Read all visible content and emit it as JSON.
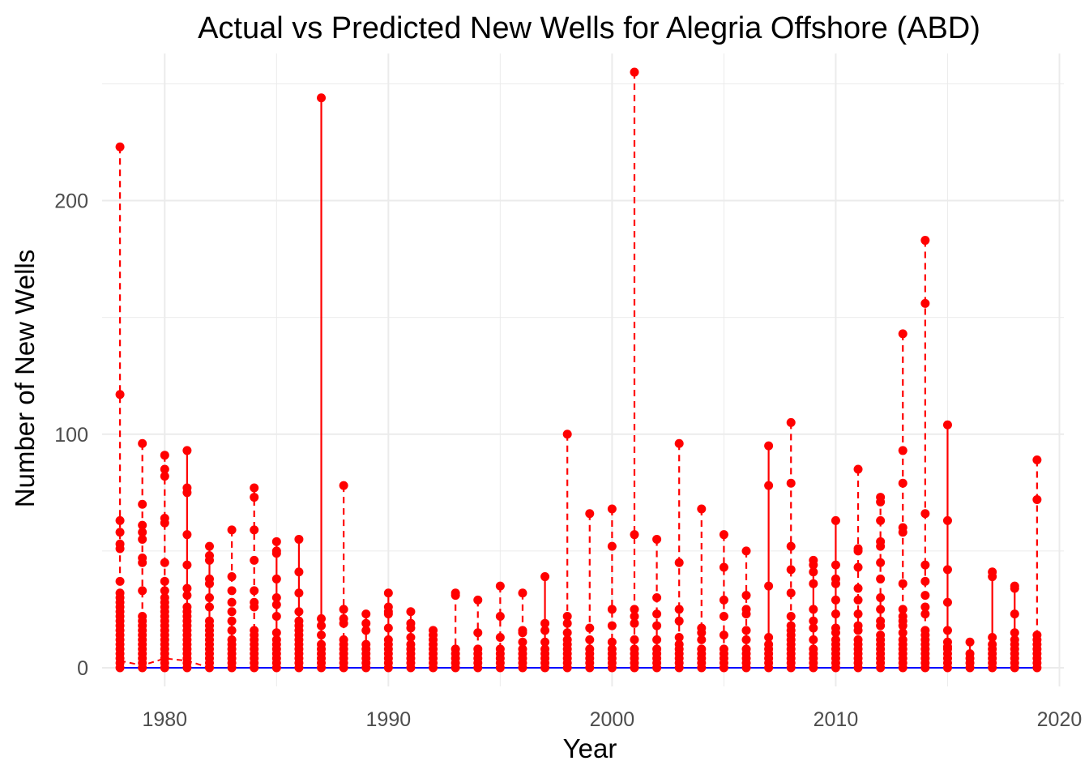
{
  "chart_data": {
    "type": "line",
    "title": "Actual vs Predicted New Wells for Alegria Offshore (ABD)",
    "xlabel": "Year",
    "ylabel": "Number of New Wells",
    "xlim": [
      1977.2,
      2020.2
    ],
    "ylim": [
      -8,
      263
    ],
    "x_ticks": [
      1980,
      1990,
      2000,
      2010,
      2020
    ],
    "y_ticks": [
      0,
      100,
      200
    ],
    "grid": true,
    "legend": "none",
    "colors": {
      "actual": "#ff0000",
      "predicted": "#0000ff",
      "grid": "#ebebeb"
    },
    "series": [
      {
        "role": "actual",
        "values_by_year": [
          {
            "year": 1978,
            "values": [
              223,
              117,
              63,
              58,
              53,
              51,
              37,
              32,
              30,
              28,
              26,
              24,
              22,
              20,
              18,
              16,
              14,
              12,
              10,
              8,
              6,
              4,
              2,
              0
            ],
            "style": "dashed"
          },
          {
            "year": 1979,
            "values": [
              96,
              70,
              61,
              58,
              55,
              47,
              45,
              33,
              22,
              20,
              18,
              16,
              14,
              12,
              10,
              8,
              6,
              4,
              2,
              0
            ],
            "style": "dashed"
          },
          {
            "year": 1980,
            "values": [
              91,
              85,
              82,
              64,
              62,
              45,
              37,
              33,
              30,
              28,
              26,
              24,
              22,
              20,
              18,
              16,
              14,
              12,
              10,
              8,
              6,
              4,
              2,
              0
            ],
            "style": "dashed"
          },
          {
            "year": 1981,
            "values": [
              93,
              77,
              75,
              57,
              44,
              34,
              31,
              26,
              24,
              22,
              20,
              18,
              16,
              14,
              12,
              10,
              8,
              6,
              4,
              2,
              0
            ],
            "style": "solid"
          },
          {
            "year": 1982,
            "values": [
              52,
              48,
              46,
              38,
              36,
              30,
              26,
              20,
              18,
              16,
              14,
              12,
              10,
              8,
              6,
              4,
              2,
              0
            ],
            "style": "solid"
          },
          {
            "year": 1983,
            "values": [
              59,
              39,
              33,
              28,
              24,
              20,
              16,
              12,
              10,
              8,
              6,
              4,
              2,
              0
            ],
            "style": "dashed"
          },
          {
            "year": 1984,
            "values": [
              77,
              73,
              59,
              46,
              33,
              28,
              26,
              16,
              14,
              12,
              10,
              8,
              6,
              4,
              2,
              0
            ],
            "style": "dashed"
          },
          {
            "year": 1985,
            "values": [
              54,
              50,
              49,
              38,
              30,
              27,
              22,
              15,
              12,
              10,
              8,
              6,
              4,
              2,
              0
            ],
            "style": "solid"
          },
          {
            "year": 1986,
            "values": [
              55,
              41,
              32,
              24,
              20,
              18,
              16,
              14,
              12,
              10,
              8,
              6,
              4,
              2,
              0
            ],
            "style": "solid"
          },
          {
            "year": 1987,
            "values": [
              244,
              21,
              18,
              14,
              10,
              8,
              6,
              4,
              2,
              0
            ],
            "style": "solid"
          },
          {
            "year": 1988,
            "values": [
              78,
              25,
              21,
              19,
              12,
              10,
              8,
              6,
              4,
              2,
              0
            ],
            "style": "dashed"
          },
          {
            "year": 1989,
            "values": [
              23,
              19,
              16,
              10,
              8,
              6,
              4,
              2,
              0
            ],
            "style": "solid"
          },
          {
            "year": 1990,
            "values": [
              32,
              26,
              24,
              23,
              17,
              12,
              10,
              8,
              6,
              4,
              2,
              0
            ],
            "style": "solid"
          },
          {
            "year": 1991,
            "values": [
              24,
              19,
              17,
              13,
              10,
              8,
              6,
              4,
              2,
              0
            ],
            "style": "solid"
          },
          {
            "year": 1992,
            "values": [
              16,
              14,
              12,
              10,
              8,
              6,
              4,
              2,
              0
            ],
            "style": "solid"
          },
          {
            "year": 1993,
            "values": [
              32,
              31,
              8,
              6,
              4,
              2,
              0
            ],
            "style": "dashed"
          },
          {
            "year": 1994,
            "values": [
              29,
              15,
              8,
              6,
              4,
              2,
              0
            ],
            "style": "dashed"
          },
          {
            "year": 1995,
            "values": [
              35,
              22,
              13,
              8,
              6,
              4,
              2,
              0
            ],
            "style": "dashed"
          },
          {
            "year": 1996,
            "values": [
              32,
              16,
              15,
              11,
              8,
              6,
              4,
              2,
              0
            ],
            "style": "dashed"
          },
          {
            "year": 1997,
            "values": [
              39,
              19,
              16,
              11,
              8,
              6,
              4,
              2,
              0
            ],
            "style": "solid"
          },
          {
            "year": 1998,
            "values": [
              100,
              22,
              19,
              15,
              12,
              10,
              8,
              6,
              4,
              2,
              0
            ],
            "style": "dashed"
          },
          {
            "year": 1999,
            "values": [
              66,
              17,
              12,
              8,
              6,
              4,
              2,
              0
            ],
            "style": "dashed"
          },
          {
            "year": 2000,
            "values": [
              68,
              52,
              25,
              18,
              11,
              8,
              6,
              4,
              2,
              0
            ],
            "style": "dashed"
          },
          {
            "year": 2001,
            "values": [
              255,
              57,
              25,
              22,
              19,
              12,
              8,
              6,
              4,
              2,
              0
            ],
            "style": "dashed"
          },
          {
            "year": 2002,
            "values": [
              55,
              30,
              23,
              18,
              12,
              8,
              6,
              4,
              2,
              0
            ],
            "style": "dashed"
          },
          {
            "year": 2003,
            "values": [
              96,
              45,
              25,
              20,
              13,
              10,
              8,
              6,
              4,
              2,
              0
            ],
            "style": "dashed"
          },
          {
            "year": 2004,
            "values": [
              68,
              17,
              15,
              12,
              8,
              6,
              4,
              2,
              0
            ],
            "style": "dashed"
          },
          {
            "year": 2005,
            "values": [
              57,
              43,
              29,
              22,
              14,
              8,
              6,
              4,
              2,
              0
            ],
            "style": "dashed"
          },
          {
            "year": 2006,
            "values": [
              50,
              31,
              25,
              23,
              16,
              12,
              8,
              6,
              4,
              2,
              0
            ],
            "style": "dashed"
          },
          {
            "year": 2007,
            "values": [
              95,
              78,
              35,
              13,
              10,
              8,
              6,
              4,
              2,
              0
            ],
            "style": "solid"
          },
          {
            "year": 2008,
            "values": [
              105,
              79,
              52,
              42,
              32,
              22,
              18,
              16,
              14,
              12,
              10,
              8,
              6,
              4,
              2,
              0
            ],
            "style": "dashed"
          },
          {
            "year": 2009,
            "values": [
              46,
              44,
              41,
              36,
              25,
              20,
              17,
              12,
              8,
              6,
              4,
              2,
              0
            ],
            "style": "solid"
          },
          {
            "year": 2010,
            "values": [
              63,
              44,
              38,
              36,
              29,
              23,
              17,
              15,
              12,
              10,
              8,
              6,
              4,
              2,
              0
            ],
            "style": "solid"
          },
          {
            "year": 2011,
            "values": [
              85,
              51,
              50,
              43,
              34,
              29,
              23,
              18,
              16,
              12,
              10,
              8,
              6,
              4,
              2,
              0
            ],
            "style": "dashed"
          },
          {
            "year": 2012,
            "values": [
              73,
              71,
              63,
              54,
              52,
              45,
              38,
              30,
              25,
              20,
              18,
              14,
              12,
              10,
              8,
              6,
              4,
              2,
              0
            ],
            "style": "dashed"
          },
          {
            "year": 2013,
            "values": [
              143,
              93,
              79,
              60,
              58,
              36,
              25,
              22,
              20,
              18,
              15,
              12,
              10,
              8,
              6,
              4,
              2,
              0
            ],
            "style": "dashed"
          },
          {
            "year": 2014,
            "values": [
              183,
              156,
              66,
              44,
              37,
              31,
              26,
              23,
              16,
              14,
              12,
              10,
              8,
              6,
              4,
              2,
              0
            ],
            "style": "dashed"
          },
          {
            "year": 2015,
            "values": [
              104,
              63,
              42,
              28,
              16,
              11,
              9,
              8,
              6,
              4,
              2,
              0
            ],
            "style": "solid"
          },
          {
            "year": 2016,
            "values": [
              11,
              6,
              4,
              2,
              0
            ],
            "style": "solid"
          },
          {
            "year": 2017,
            "values": [
              41,
              39,
              13,
              10,
              8,
              6,
              4,
              2,
              0
            ],
            "style": "solid"
          },
          {
            "year": 2018,
            "values": [
              35,
              34,
              23,
              15,
              12,
              10,
              8,
              6,
              4,
              2,
              0
            ],
            "style": "solid"
          },
          {
            "year": 2019,
            "values": [
              89,
              72,
              14,
              12,
              10,
              8,
              6,
              4,
              2,
              0
            ],
            "style": "dashed"
          }
        ]
      },
      {
        "role": "predicted",
        "x": [
          1978,
          2019
        ],
        "y": [
          0,
          0
        ]
      }
    ]
  }
}
